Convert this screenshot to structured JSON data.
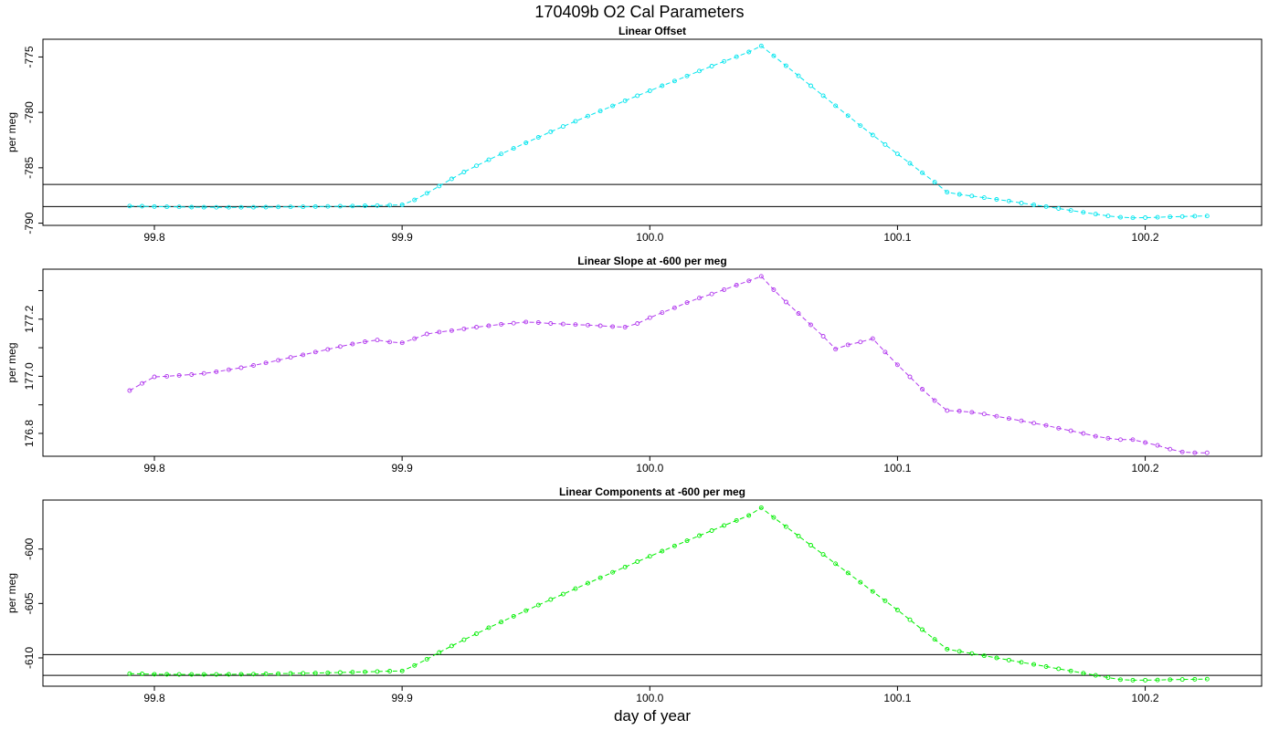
{
  "title": "170409b   O2 Cal Parameters",
  "xlabel": "day of year",
  "chart_data": [
    {
      "type": "line",
      "title": "Linear Offset",
      "ylabel": "per meg",
      "xlim": [
        99.755,
        100.247
      ],
      "ylim": [
        -790.2,
        -773.4
      ],
      "xticks": [
        99.8,
        99.9,
        100.0,
        100.1,
        100.2
      ],
      "xtick_labels": [
        "99.8",
        "99.9",
        "100.0",
        "100.1",
        "100.2"
      ],
      "yticks": [
        -790,
        -785,
        -780,
        -775
      ],
      "ytick_labels": [
        "-790",
        "-785",
        "-780",
        "-775"
      ],
      "hlines": [
        -786.5,
        -788.5
      ],
      "series": [
        {
          "color": "#00e5ee",
          "x": [
            99.79,
            99.795,
            99.8,
            99.805,
            99.81,
            99.815,
            99.82,
            99.825,
            99.83,
            99.835,
            99.84,
            99.845,
            99.85,
            99.855,
            99.86,
            99.865,
            99.87,
            99.875,
            99.88,
            99.885,
            99.89,
            99.895,
            99.9,
            99.905,
            99.91,
            99.915,
            99.92,
            99.925,
            99.93,
            99.935,
            99.94,
            99.945,
            99.95,
            99.955,
            99.96,
            99.965,
            99.97,
            99.975,
            99.98,
            99.985,
            99.99,
            99.995,
            100.0,
            100.005,
            100.01,
            100.015,
            100.02,
            100.025,
            100.03,
            100.035,
            100.04,
            100.045,
            100.05,
            100.055,
            100.06,
            100.065,
            100.07,
            100.075,
            100.08,
            100.085,
            100.09,
            100.095,
            100.1,
            100.105,
            100.11,
            100.115,
            100.12,
            100.125,
            100.13,
            100.135,
            100.14,
            100.145,
            100.15,
            100.155,
            100.16,
            100.165,
            100.17,
            100.175,
            100.18,
            100.185,
            100.19,
            100.195,
            100.2,
            100.205,
            100.21,
            100.215,
            100.22,
            100.225
          ],
          "y": [
            -788.45,
            -788.47,
            -788.5,
            -788.52,
            -788.53,
            -788.55,
            -788.56,
            -788.57,
            -788.57,
            -788.57,
            -788.56,
            -788.55,
            -788.54,
            -788.53,
            -788.52,
            -788.5,
            -788.49,
            -788.47,
            -788.45,
            -788.43,
            -788.41,
            -788.38,
            -788.35,
            -787.9,
            -787.3,
            -786.65,
            -786.0,
            -785.38,
            -784.82,
            -784.28,
            -783.75,
            -783.25,
            -782.75,
            -782.25,
            -781.75,
            -781.27,
            -780.8,
            -780.33,
            -779.87,
            -779.42,
            -778.95,
            -778.5,
            -778.05,
            -777.6,
            -777.17,
            -776.72,
            -776.27,
            -775.83,
            -775.4,
            -774.98,
            -774.55,
            -774.0,
            -774.9,
            -775.8,
            -776.7,
            -777.6,
            -778.5,
            -779.4,
            -780.3,
            -781.2,
            -782.05,
            -782.9,
            -783.75,
            -784.6,
            -785.45,
            -786.3,
            -787.2,
            -787.4,
            -787.55,
            -787.7,
            -787.85,
            -788.0,
            -788.18,
            -788.35,
            -788.5,
            -788.68,
            -788.85,
            -789.02,
            -789.18,
            -789.35,
            -789.47,
            -789.52,
            -789.5,
            -789.47,
            -789.43,
            -789.4,
            -789.37,
            -789.35
          ]
        }
      ]
    },
    {
      "type": "line",
      "title": "Linear Slope at -600 per meg",
      "ylabel": "per meg",
      "xlim": [
        99.755,
        100.247
      ],
      "ylim": [
        176.72,
        177.375
      ],
      "xticks": [
        99.8,
        99.9,
        100.0,
        100.1,
        100.2
      ],
      "xtick_labels": [
        "99.8",
        "99.9",
        "100.0",
        "100.1",
        "100.2"
      ],
      "yticks": [
        176.8,
        177.0,
        177.2
      ],
      "ytick_labels": [
        "176.8",
        "177.0",
        "177.2"
      ],
      "yticks_minor": [
        176.9,
        177.1,
        177.3
      ],
      "series": [
        {
          "color": "#b23aee",
          "x": [
            99.79,
            99.795,
            99.8,
            99.805,
            99.81,
            99.815,
            99.82,
            99.825,
            99.83,
            99.835,
            99.84,
            99.845,
            99.85,
            99.855,
            99.86,
            99.865,
            99.87,
            99.875,
            99.88,
            99.885,
            99.89,
            99.895,
            99.9,
            99.905,
            99.91,
            99.915,
            99.92,
            99.925,
            99.93,
            99.935,
            99.94,
            99.945,
            99.95,
            99.955,
            99.96,
            99.965,
            99.97,
            99.975,
            99.98,
            99.985,
            99.99,
            99.995,
            100.0,
            100.005,
            100.01,
            100.015,
            100.02,
            100.025,
            100.03,
            100.035,
            100.04,
            100.045,
            100.05,
            100.055,
            100.06,
            100.065,
            100.07,
            100.075,
            100.08,
            100.085,
            100.09,
            100.095,
            100.1,
            100.105,
            100.11,
            100.115,
            100.12,
            100.125,
            100.13,
            100.135,
            100.14,
            100.145,
            100.15,
            100.155,
            100.16,
            100.165,
            100.17,
            100.175,
            100.18,
            100.185,
            100.19,
            100.195,
            100.2,
            100.205,
            100.21,
            100.215,
            100.22,
            100.225
          ],
          "y": [
            176.95,
            176.975,
            176.998,
            177.0,
            177.003,
            177.006,
            177.01,
            177.016,
            177.023,
            177.03,
            177.038,
            177.047,
            177.056,
            177.066,
            177.075,
            177.085,
            177.094,
            177.104,
            177.113,
            177.121,
            177.127,
            177.12,
            177.117,
            177.132,
            177.148,
            177.155,
            177.16,
            177.166,
            177.172,
            177.177,
            177.182,
            177.186,
            177.19,
            177.188,
            177.185,
            177.183,
            177.181,
            177.179,
            177.177,
            177.174,
            177.172,
            177.185,
            177.205,
            177.223,
            177.24,
            177.258,
            177.274,
            177.288,
            177.303,
            177.319,
            177.334,
            177.35,
            177.303,
            177.26,
            177.22,
            177.18,
            177.14,
            177.095,
            177.11,
            177.12,
            177.132,
            177.085,
            177.04,
            176.998,
            176.955,
            176.915,
            176.88,
            176.878,
            176.874,
            176.868,
            176.86,
            176.852,
            176.844,
            176.836,
            176.828,
            176.818,
            176.809,
            176.8,
            176.79,
            176.783,
            176.778,
            176.778,
            176.768,
            176.758,
            176.745,
            176.735,
            176.732,
            176.732
          ]
        }
      ]
    },
    {
      "type": "line",
      "title": "Linear Components at -600 per meg",
      "ylabel": "per meg",
      "xlim": [
        99.755,
        100.247
      ],
      "ylim": [
        -612.6,
        -595.5
      ],
      "xticks": [
        99.8,
        99.9,
        100.0,
        100.1,
        100.2
      ],
      "xtick_labels": [
        "99.8",
        "99.9",
        "100.0",
        "100.1",
        "100.2"
      ],
      "yticks": [
        -610,
        -605,
        -600
      ],
      "ytick_labels": [
        "-610",
        "-605",
        "-600"
      ],
      "hlines": [
        -609.7,
        -611.6
      ],
      "series": [
        {
          "color": "#00ee00",
          "x": [
            99.79,
            99.795,
            99.8,
            99.805,
            99.81,
            99.815,
            99.82,
            99.825,
            99.83,
            99.835,
            99.84,
            99.845,
            99.85,
            99.855,
            99.86,
            99.865,
            99.87,
            99.875,
            99.88,
            99.885,
            99.89,
            99.895,
            99.9,
            99.905,
            99.91,
            99.915,
            99.92,
            99.925,
            99.93,
            99.935,
            99.94,
            99.945,
            99.95,
            99.955,
            99.96,
            99.965,
            99.97,
            99.975,
            99.98,
            99.985,
            99.99,
            99.995,
            100.0,
            100.005,
            100.01,
            100.015,
            100.02,
            100.025,
            100.03,
            100.035,
            100.04,
            100.045,
            100.05,
            100.055,
            100.06,
            100.065,
            100.07,
            100.075,
            100.08,
            100.085,
            100.09,
            100.095,
            100.1,
            100.105,
            100.11,
            100.115,
            100.12,
            100.125,
            100.13,
            100.135,
            100.14,
            100.145,
            100.15,
            100.155,
            100.16,
            100.165,
            100.17,
            100.175,
            100.18,
            100.185,
            100.19,
            100.195,
            100.2,
            100.205,
            100.21,
            100.215,
            100.22,
            100.225
          ],
          "y": [
            -611.45,
            -611.47,
            -611.5,
            -611.51,
            -611.52,
            -611.52,
            -611.52,
            -611.52,
            -611.51,
            -611.5,
            -611.49,
            -611.47,
            -611.45,
            -611.43,
            -611.41,
            -611.39,
            -611.37,
            -611.34,
            -611.31,
            -611.28,
            -611.25,
            -611.22,
            -611.2,
            -610.7,
            -610.12,
            -609.5,
            -608.9,
            -608.33,
            -607.78,
            -607.23,
            -606.7,
            -606.18,
            -605.66,
            -605.15,
            -604.64,
            -604.14,
            -603.64,
            -603.14,
            -602.64,
            -602.14,
            -601.65,
            -601.16,
            -600.67,
            -600.19,
            -599.72,
            -599.24,
            -598.77,
            -598.31,
            -597.84,
            -597.38,
            -596.92,
            -596.2,
            -597.1,
            -597.95,
            -598.8,
            -599.65,
            -600.5,
            -601.35,
            -602.2,
            -603.05,
            -603.9,
            -604.75,
            -605.6,
            -606.5,
            -607.4,
            -608.3,
            -609.2,
            -609.4,
            -609.6,
            -609.8,
            -610.0,
            -610.2,
            -610.4,
            -610.6,
            -610.8,
            -611.0,
            -611.2,
            -611.4,
            -611.6,
            -611.8,
            -612.0,
            -612.05,
            -612.05,
            -612.03,
            -612.0,
            -611.98,
            -611.96,
            -611.95
          ]
        }
      ]
    }
  ]
}
